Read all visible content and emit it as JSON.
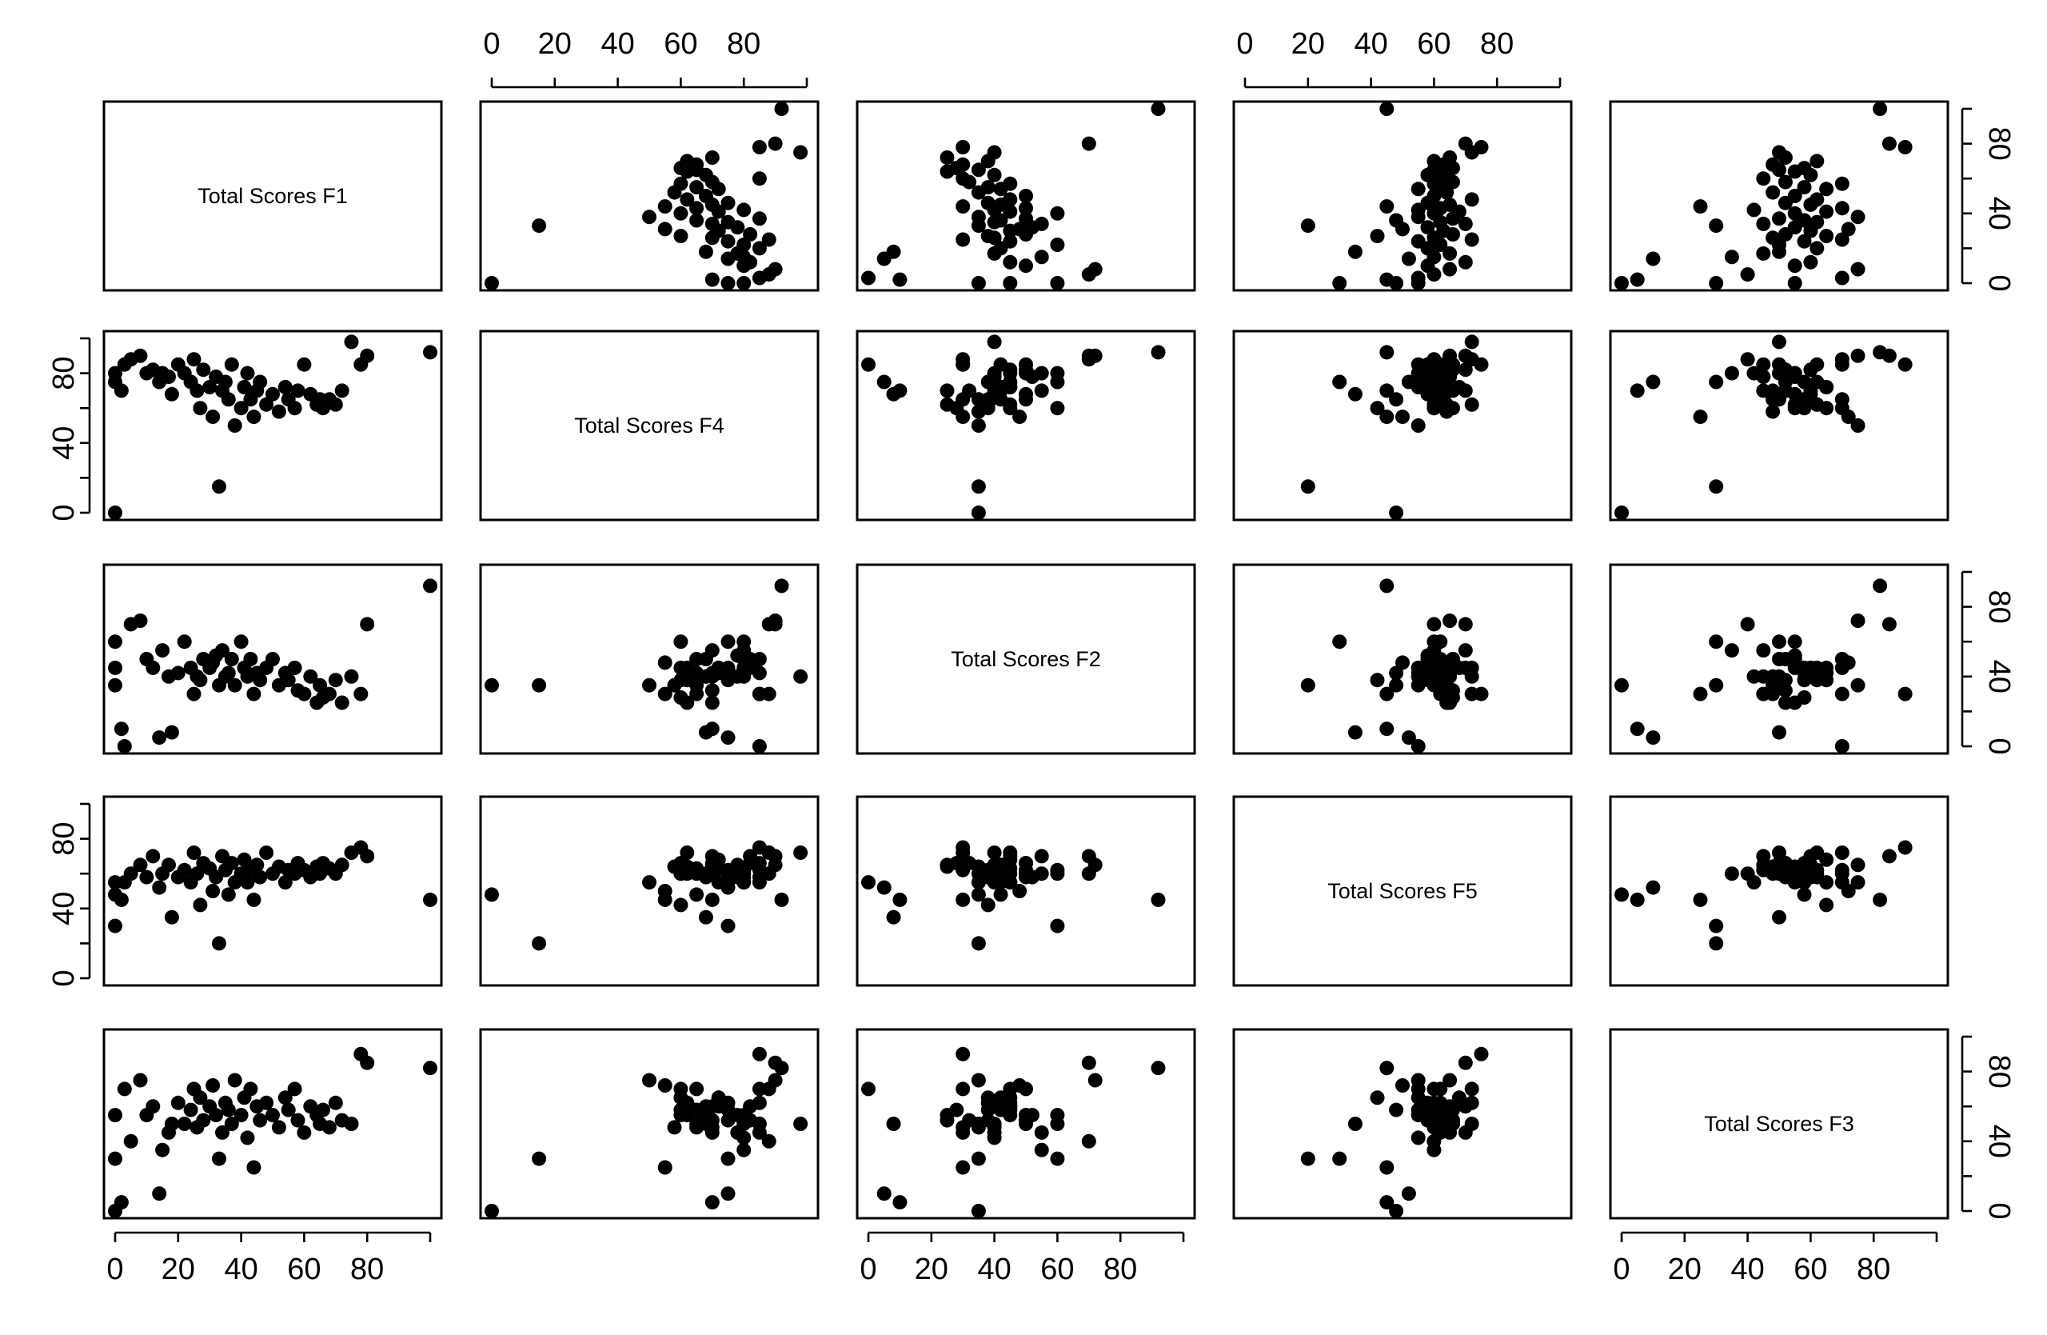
{
  "chart_data": {
    "type": "scatter",
    "subtype": "pairs-matrix",
    "variables": [
      "Total Scores F1",
      "Total Scores F4",
      "Total Scores F2",
      "Total Scores F5",
      "Total Scores F3"
    ],
    "x_ticks": {
      "Total Scores F1": [
        "0",
        "20",
        "40",
        "60",
        "80"
      ],
      "Total Scores F4": [
        "0",
        "20",
        "40",
        "60",
        "80"
      ],
      "Total Scores F2": [
        "0",
        "20",
        "40",
        "60",
        "80"
      ],
      "Total Scores F5": [
        "0",
        "20",
        "40",
        "60",
        "80"
      ],
      "Total Scores F3": [
        "0",
        "20",
        "40",
        "60",
        "80"
      ]
    },
    "y_ticks": {
      "Total Scores F1": [
        "0",
        "40",
        "80"
      ],
      "Total Scores F4": [
        "0",
        "40",
        "80"
      ],
      "Total Scores F2": [
        "0",
        "40",
        "80"
      ],
      "Total Scores F5": [
        "0",
        "40",
        "80"
      ],
      "Total Scores F3": [
        "0",
        "40",
        "80"
      ]
    },
    "xlim": [
      0,
      100
    ],
    "ylim": [
      0,
      100
    ],
    "grid": false,
    "legend": "none",
    "point_style": "filled black circles",
    "records": [
      [
        0,
        0,
        35,
        48,
        0
      ],
      [
        0,
        75,
        60,
        30,
        30
      ],
      [
        0,
        80,
        45,
        55,
        55
      ],
      [
        2,
        70,
        10,
        45,
        5
      ],
      [
        3,
        85,
        0,
        55,
        70
      ],
      [
        5,
        88,
        70,
        60,
        40
      ],
      [
        8,
        90,
        72,
        65,
        75
      ],
      [
        10,
        80,
        50,
        58,
        55
      ],
      [
        12,
        82,
        45,
        70,
        60
      ],
      [
        14,
        75,
        5,
        52,
        10
      ],
      [
        15,
        80,
        55,
        60,
        35
      ],
      [
        17,
        78,
        40,
        65,
        45
      ],
      [
        18,
        68,
        8,
        35,
        50
      ],
      [
        20,
        85,
        42,
        58,
        62
      ],
      [
        22,
        80,
        60,
        62,
        50
      ],
      [
        24,
        75,
        45,
        55,
        58
      ],
      [
        25,
        88,
        30,
        72,
        70
      ],
      [
        26,
        70,
        40,
        60,
        48
      ],
      [
        27,
        60,
        38,
        42,
        65
      ],
      [
        28,
        82,
        50,
        66,
        52
      ],
      [
        30,
        72,
        45,
        63,
        60
      ],
      [
        31,
        55,
        48,
        50,
        72
      ],
      [
        32,
        78,
        52,
        58,
        55
      ],
      [
        33,
        15,
        35,
        20,
        30
      ],
      [
        34,
        70,
        55,
        70,
        45
      ],
      [
        35,
        75,
        40,
        62,
        62
      ],
      [
        36,
        65,
        42,
        48,
        58
      ],
      [
        37,
        85,
        50,
        66,
        50
      ],
      [
        38,
        50,
        35,
        55,
        75
      ],
      [
        40,
        60,
        60,
        60,
        55
      ],
      [
        41,
        72,
        45,
        68,
        65
      ],
      [
        42,
        80,
        40,
        55,
        42
      ],
      [
        43,
        65,
        50,
        62,
        70
      ],
      [
        44,
        55,
        30,
        45,
        25
      ],
      [
        45,
        70,
        42,
        65,
        60
      ],
      [
        46,
        75,
        38,
        58,
        52
      ],
      [
        48,
        62,
        45,
        72,
        62
      ],
      [
        50,
        68,
        50,
        60,
        55
      ],
      [
        52,
        58,
        35,
        64,
        48
      ],
      [
        54,
        72,
        42,
        55,
        65
      ],
      [
        55,
        65,
        38,
        62,
        58
      ],
      [
        57,
        60,
        45,
        60,
        70
      ],
      [
        58,
        70,
        32,
        66,
        52
      ],
      [
        60,
        85,
        30,
        62,
        45
      ],
      [
        62,
        68,
        40,
        58,
        60
      ],
      [
        64,
        62,
        25,
        64,
        55
      ],
      [
        65,
        65,
        35,
        60,
        50
      ],
      [
        66,
        60,
        28,
        66,
        58
      ],
      [
        68,
        65,
        30,
        63,
        48
      ],
      [
        70,
        62,
        38,
        60,
        62
      ],
      [
        72,
        70,
        25,
        65,
        52
      ],
      [
        75,
        98,
        40,
        72,
        50
      ],
      [
        78,
        85,
        30,
        75,
        90
      ],
      [
        80,
        90,
        70,
        70,
        85
      ],
      [
        100,
        92,
        92,
        45,
        82
      ]
    ]
  },
  "figure": {
    "background": "#ffffff",
    "ink": "#000000"
  }
}
